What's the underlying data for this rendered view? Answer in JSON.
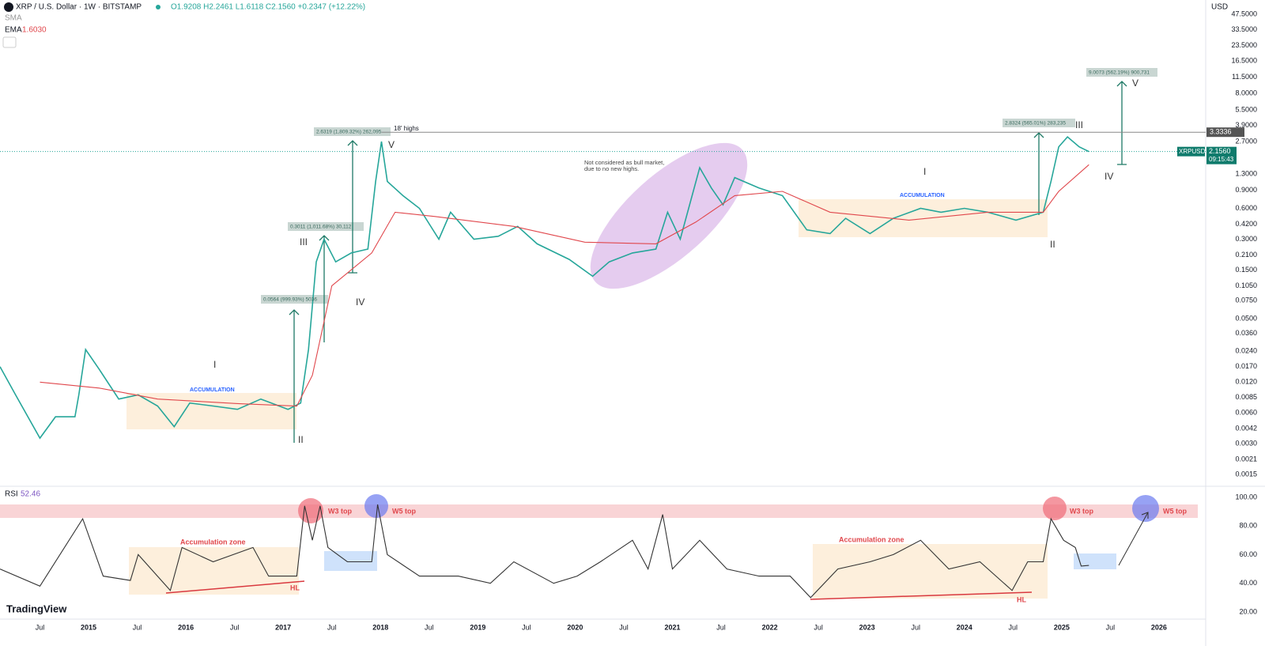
{
  "header": {
    "title": "XRP / U.S. Dollar · 1W · BITSTAMP",
    "ohlc": "O1.9208 H2.2461 L1.6118 C2.1560 +0.2347 (+12.22%)",
    "sma_label": "SMA",
    "ema_value": "1.6030",
    "currency": "USD",
    "rsi_value": "52.46",
    "logo": "TradingView"
  },
  "chart_data": [
    {
      "type": "line",
      "log_scale": true,
      "grid": false,
      "xlim": [
        2014.09,
        2026.48
      ],
      "xticks": [
        {
          "value": 2014.5,
          "label": "Jul"
        },
        2015,
        {
          "value": 2015.5,
          "label": "Jul"
        },
        2016,
        {
          "value": 2016.5,
          "label": "Jul"
        },
        2017,
        {
          "value": 2017.5,
          "label": "Jul"
        },
        2018,
        {
          "value": 2018.5,
          "label": "Jul"
        },
        2019,
        {
          "value": 2019.5,
          "label": "Jul"
        },
        2020,
        {
          "value": 2020.5,
          "label": "Jul"
        },
        2021,
        {
          "value": 2021.5,
          "label": "Jul"
        },
        2022,
        {
          "value": 2022.5,
          "label": "Jul"
        },
        2023,
        {
          "value": 2023.5,
          "label": "Jul"
        },
        2024,
        {
          "value": 2024.5,
          "label": "Jul"
        },
        2025,
        {
          "value": 2025.5,
          "label": "Jul"
        },
        2026
      ],
      "ylim": [
        0.00115,
        65.4
      ],
      "yticks": [
        {
          "value": 47.5,
          "label": "47.5000"
        },
        {
          "value": 33.5,
          "label": "33.5000"
        },
        {
          "value": 23.5,
          "label": "23.5000"
        },
        {
          "value": 16.5,
          "label": "16.5000"
        },
        {
          "value": 11.5,
          "label": "11.5000"
        },
        {
          "value": 8,
          "label": "8.0000"
        },
        {
          "value": 5.5,
          "label": "5.5000"
        },
        {
          "value": 3.9,
          "label": "3.9000"
        },
        {
          "value": 2.7,
          "label": "2.7000"
        },
        {
          "value": 1.3,
          "label": "1.3000"
        },
        {
          "value": 0.9,
          "label": "0.9000"
        },
        {
          "value": 0.6,
          "label": "0.6000"
        },
        {
          "value": 0.42,
          "label": "0.4200"
        },
        {
          "value": 0.3,
          "label": "0.3000"
        },
        {
          "value": 0.21,
          "label": "0.2100"
        },
        {
          "value": 0.15,
          "label": "0.1500"
        },
        {
          "value": 0.105,
          "label": "0.1050"
        },
        {
          "value": 0.075,
          "label": "0.0750"
        },
        {
          "value": 0.05,
          "label": "0.0500"
        },
        {
          "value": 0.036,
          "label": "0.0360"
        },
        {
          "value": 0.024,
          "label": "0.0240"
        },
        {
          "value": 0.017,
          "label": "0.0170"
        },
        {
          "value": 0.012,
          "label": "0.0120"
        },
        0.0085,
        {
          "value": 0.006,
          "label": "0.0060"
        },
        0.0042,
        {
          "value": 0.003,
          "label": "0.0030"
        },
        0.0021,
        0.0015
      ],
      "level": 3.3336,
      "last_price": {
        "value": 2.156,
        "label": "2.1560"
      },
      "countdown": "09:15:43",
      "series": [
        {
          "name": "XRPUSD",
          "color": "#26a69a",
          "x": [
            2014.09,
            2014.25,
            2014.5,
            2014.66,
            2014.86,
            2014.9,
            2014.97,
            2015.11,
            2015.31,
            2015.51,
            2015.71,
            2015.88,
            2016.04,
            2016.28,
            2016.53,
            2016.77,
            2017.05,
            2017.18,
            2017.26,
            2017.34,
            2017.42,
            2017.54,
            2017.7,
            2017.87,
            2017.95,
            2018.01,
            2018.07,
            2018.23,
            2018.4,
            2018.6,
            2018.72,
            2018.96,
            2019.21,
            2019.41,
            2019.61,
            2019.94,
            2020.18,
            2020.35,
            2020.59,
            2020.83,
            2020.95,
            2021.08,
            2021.28,
            2021.4,
            2021.52,
            2021.64,
            2021.89,
            2022.13,
            2022.38,
            2022.62,
            2022.78,
            2023.03,
            2023.27,
            2023.55,
            2023.76,
            2024.0,
            2024.24,
            2024.53,
            2024.81,
            2024.89,
            2024.97,
            2025.06,
            2025.18,
            2025.28
          ],
          "values": [
            0.017,
            0.009,
            0.0034,
            0.0055,
            0.0055,
            0.009,
            0.025,
            0.016,
            0.0082,
            0.009,
            0.007,
            0.0044,
            0.0075,
            0.007,
            0.0065,
            0.0082,
            0.0065,
            0.0075,
            0.025,
            0.18,
            0.3,
            0.18,
            0.22,
            0.24,
            1.1,
            2.7,
            1.1,
            0.8,
            0.6,
            0.3,
            0.55,
            0.3,
            0.32,
            0.4,
            0.27,
            0.19,
            0.13,
            0.18,
            0.22,
            0.24,
            0.55,
            0.3,
            1.5,
            0.95,
            0.65,
            1.2,
            0.95,
            0.8,
            0.37,
            0.34,
            0.48,
            0.34,
            0.48,
            0.6,
            0.55,
            0.6,
            0.55,
            0.46,
            0.55,
            1.1,
            2.4,
            3.0,
            2.4,
            2.156
          ]
        },
        {
          "name": "EMA",
          "color": "#e0474c",
          "x": [
            2014.5,
            2015.11,
            2015.71,
            2016.53,
            2017.14,
            2017.3,
            2017.5,
            2017.91,
            2018.15,
            2018.56,
            2019.37,
            2020.1,
            2020.83,
            2021.24,
            2021.64,
            2022.13,
            2022.62,
            2023.43,
            2024.24,
            2024.81,
            2024.97,
            2025.28
          ],
          "values": [
            0.012,
            0.0105,
            0.0082,
            0.0074,
            0.007,
            0.014,
            0.105,
            0.22,
            0.55,
            0.5,
            0.4,
            0.28,
            0.27,
            0.44,
            0.8,
            0.88,
            0.55,
            0.46,
            0.55,
            0.55,
            0.88,
            1.603
          ]
        }
      ],
      "annotations": [
        "18' highs",
        "V",
        "III",
        "IV",
        "I",
        "II",
        "ACCUMULATION",
        "Not considered as bull market,",
        "due to no new highs.",
        "I",
        "ACCUMULATION",
        "II",
        "III",
        "IV",
        "V",
        "0.0564 (999.93%) 5036",
        "0.3011 (1,011.68%) 30,112",
        "2.6319 (1,809.32%) 262,095",
        "2.8324 (565.01%) 283,235",
        "9.0073 (562.19%) 900,731"
      ]
    },
    {
      "type": "line",
      "grid": false,
      "xlim": [
        2014.09,
        2026.48
      ],
      "ylim": [
        15,
        106.6
      ],
      "yticks": [
        {
          "value": 100,
          "label": "100.00"
        },
        {
          "value": 80,
          "label": "80.00"
        },
        {
          "value": 60,
          "label": "60.00"
        },
        {
          "value": 40,
          "label": "40.00"
        },
        {
          "value": 20,
          "label": "20.00"
        }
      ],
      "series": [
        {
          "name": "RSI",
          "color": "#333333",
          "x": [
            2014.09,
            2014.5,
            2014.94,
            2015.15,
            2015.43,
            2015.51,
            2015.84,
            2015.96,
            2016.28,
            2016.69,
            2016.85,
            2017.14,
            2017.22,
            2017.3,
            2017.38,
            2017.46,
            2017.66,
            2017.91,
            2017.97,
            2018.07,
            2018.4,
            2018.8,
            2019.13,
            2019.37,
            2019.78,
            2020.02,
            2020.26,
            2020.59,
            2020.75,
            2020.9,
            2021.0,
            2021.28,
            2021.56,
            2021.89,
            2022.21,
            2022.42,
            2022.7,
            2023.03,
            2023.27,
            2023.55,
            2023.84,
            2024.16,
            2024.49,
            2024.65,
            2024.81,
            2024.89,
            2025.02,
            2025.14,
            2025.2,
            2025.28
          ],
          "values": [
            50,
            38,
            85,
            45,
            42,
            60,
            35,
            65,
            55,
            65,
            45,
            45,
            94,
            70,
            94,
            65,
            55,
            55,
            95,
            60,
            45,
            45,
            40,
            55,
            40,
            45,
            55,
            70,
            50,
            88,
            50,
            70,
            50,
            45,
            45,
            30,
            50,
            55,
            60,
            70,
            50,
            55,
            35,
            55,
            55,
            85,
            70,
            65,
            52,
            52.46
          ]
        }
      ],
      "annotations": [
        "W3 top",
        "W5 top",
        "Accumulation zone",
        "HL",
        "Accumulation zone",
        "HL",
        "W3 top",
        "W5 top"
      ]
    }
  ]
}
